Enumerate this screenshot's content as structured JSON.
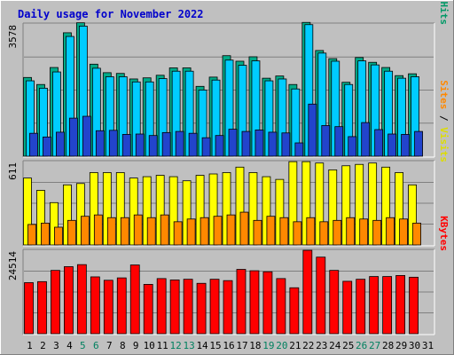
{
  "chart_data": {
    "type": "bar",
    "title": "Daily usage for November 2022",
    "categories": [
      "1",
      "2",
      "3",
      "4",
      "5",
      "6",
      "7",
      "8",
      "9",
      "10",
      "11",
      "12",
      "13",
      "14",
      "15",
      "16",
      "17",
      "18",
      "19",
      "20",
      "21",
      "22",
      "23",
      "24",
      "25",
      "26",
      "27",
      "28",
      "29",
      "30",
      "31"
    ],
    "weekend_days": [
      "5",
      "6",
      "12",
      "13",
      "19",
      "20",
      "26",
      "27"
    ],
    "panels": [
      {
        "y_max_label": "3578",
        "ylim": [
          0,
          3578
        ],
        "axis_label_parts": [
          "Pages",
          " / ",
          "Files",
          " / ",
          "Hits"
        ],
        "axis_label_colors": [
          "#00cccc",
          "#000000",
          "#2244cc",
          "#000000",
          "#009966"
        ],
        "series": [
          {
            "name": "Hits",
            "color": "#00aa88",
            "values": [
              2130,
              1940,
              2400,
              3340,
              3610,
              2490,
              2260,
              2240,
              2090,
              2120,
              2190,
              2390,
              2390,
              1890,
              2140,
              2720,
              2570,
              2690,
              2110,
              2170,
              1940,
              3620,
              2860,
              2640,
              2000,
              2670,
              2540,
              2400,
              2180,
              2230,
              0
            ]
          },
          {
            "name": "Files",
            "color": "#00ccff",
            "values": [
              2040,
              1840,
              2280,
              3240,
              3520,
              2380,
              2150,
              2150,
              2010,
              2010,
              2100,
              2300,
              2300,
              1790,
              2060,
              2600,
              2460,
              2580,
              2040,
              2090,
              1820,
              3560,
              2790,
              2570,
              1940,
              2580,
              2470,
              2300,
              2110,
              2150,
              0
            ]
          },
          {
            "name": "Pages",
            "color": "#2244cc",
            "values": [
              620,
              520,
              650,
              1030,
              1080,
              690,
              700,
              590,
              600,
              560,
              640,
              670,
              620,
              500,
              560,
              730,
              670,
              710,
              650,
              630,
              360,
              1410,
              830,
              800,
              530,
              910,
              720,
              600,
              590,
              670,
              0
            ]
          }
        ]
      },
      {
        "y_max_label": "611",
        "ylim": [
          0,
          611
        ],
        "axis_label_parts": [
          "Sites",
          " / ",
          "Visits"
        ],
        "axis_label_colors": [
          "#ff8800",
          "#000000",
          "#dddd00"
        ],
        "series": [
          {
            "name": "Visits",
            "color": "#ffff00",
            "values": [
              490,
              400,
              310,
              440,
              450,
              530,
              530,
              530,
              490,
              500,
              510,
              500,
              470,
              510,
              520,
              530,
              570,
              530,
              500,
              480,
              610,
              610,
              600,
              550,
              580,
              590,
              600,
              570,
              530,
              440,
              0
            ]
          },
          {
            "name": "Sites",
            "color": "#ff8800",
            "values": [
              150,
              160,
              130,
              180,
              210,
              220,
              200,
              200,
              220,
              200,
              220,
              170,
              190,
              200,
              210,
              220,
              240,
              180,
              210,
              200,
              170,
              200,
              170,
              180,
              200,
              190,
              180,
              200,
              190,
              160,
              0
            ]
          }
        ]
      },
      {
        "y_max_label": "24514",
        "ylim": [
          0,
          24514
        ],
        "axis_label_parts": [
          "KBytes"
        ],
        "axis_label_colors": [
          "#ff0000"
        ],
        "series": [
          {
            "name": "KBytes",
            "color": "#ff0000",
            "values": [
              15000,
              15300,
              18600,
              19700,
              20300,
              16700,
              15700,
              16400,
              20200,
              14500,
              16200,
              15800,
              16000,
              14800,
              16000,
              15600,
              18900,
              18500,
              18200,
              16200,
              13500,
              24500,
              22500,
              18600,
              15400,
              16000,
              16800,
              16800,
              17100,
              16600,
              0
            ]
          }
        ]
      }
    ]
  }
}
